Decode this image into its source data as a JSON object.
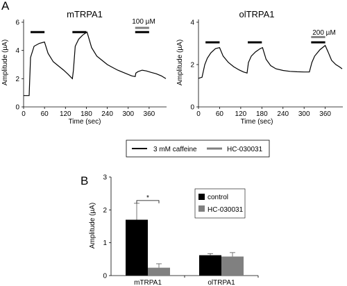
{
  "panel_labels": [
    "A",
    "B"
  ],
  "legend_top": {
    "items": [
      {
        "label": "3 mM caffeine",
        "color": "#000000"
      },
      {
        "label": "HC-030031",
        "color": "#808080"
      }
    ]
  },
  "chart_data": [
    {
      "type": "line",
      "title": "mTRPA1",
      "xlabel": "Time (sec)",
      "ylabel": "Amplitude (µA)",
      "xlim": [
        0,
        410
      ],
      "ylim": [
        0,
        6
      ],
      "xticks": [
        "0",
        "60",
        "120",
        "180",
        "240",
        "300",
        "360"
      ],
      "xtick_values": [
        0,
        60,
        120,
        180,
        240,
        300,
        360
      ],
      "yticks": [
        "0",
        "2",
        "4",
        "6"
      ],
      "ytick_values": [
        0,
        2,
        4,
        6
      ],
      "series": [
        {
          "x": [
            0,
            12,
            16,
            20,
            30,
            45,
            60,
            70,
            85,
            100,
            115,
            128,
            138,
            140,
            143,
            148,
            158,
            170,
            182,
            195,
            210,
            225,
            240,
            255,
            270,
            290,
            310,
            320,
            322,
            328,
            340,
            352,
            365,
            380,
            395,
            408
          ],
          "y": [
            0.8,
            0.8,
            0.8,
            3.5,
            4.3,
            4.5,
            4.6,
            3.8,
            3.2,
            2.9,
            2.6,
            2.3,
            2.05,
            2.0,
            2.6,
            4.3,
            4.8,
            5.1,
            5.3,
            4.2,
            3.6,
            3.3,
            3.0,
            2.8,
            2.6,
            2.4,
            2.2,
            2.15,
            2.4,
            2.5,
            2.6,
            2.55,
            2.45,
            2.35,
            2.2,
            2.0
          ]
        }
      ],
      "bars": [
        {
          "x_start": 20,
          "x_end": 60,
          "y": 5.3,
          "color": "#000000"
        },
        {
          "x_start": 140,
          "x_end": 180,
          "y": 5.3,
          "color": "#000000"
        },
        {
          "x_start": 320,
          "x_end": 360,
          "y": 5.3,
          "color": "#000000"
        },
        {
          "x_start": 320,
          "x_end": 360,
          "y": 5.6,
          "color": "#808080"
        }
      ],
      "annotation": {
        "text": "100 µM",
        "x": 340,
        "y": 5.75
      }
    },
    {
      "type": "line",
      "title": "olTRPA1",
      "xlabel": "Time (sec)",
      "ylabel": "Amplitude (µA)",
      "xlim": [
        0,
        410
      ],
      "ylim": [
        0,
        4
      ],
      "xticks": [
        "0",
        "60",
        "120",
        "180",
        "240",
        "300",
        "360"
      ],
      "xtick_values": [
        0,
        60,
        120,
        180,
        240,
        300,
        360
      ],
      "yticks": [
        "0",
        "2",
        "4"
      ],
      "ytick_values": [
        0,
        2,
        4
      ],
      "series": [
        {
          "x": [
            0,
            10,
            18,
            25,
            35,
            48,
            60,
            70,
            85,
            100,
            115,
            128,
            138,
            142,
            150,
            162,
            175,
            182,
            192,
            205,
            220,
            240,
            260,
            280,
            300,
            315,
            322,
            330,
            345,
            360,
            368,
            378,
            390,
            400,
            408
          ],
          "y": [
            1.35,
            1.4,
            2.0,
            2.3,
            2.55,
            2.75,
            2.8,
            2.4,
            2.1,
            1.9,
            1.75,
            1.65,
            1.6,
            2.1,
            2.4,
            2.6,
            2.75,
            2.8,
            2.25,
            1.95,
            1.8,
            1.72,
            1.68,
            1.66,
            1.65,
            1.65,
            2.1,
            2.4,
            2.7,
            2.9,
            2.6,
            2.2,
            2.0,
            1.9,
            1.8
          ]
        }
      ],
      "bars": [
        {
          "x_start": 20,
          "x_end": 60,
          "y": 3.05,
          "color": "#000000"
        },
        {
          "x_start": 140,
          "x_end": 180,
          "y": 3.05,
          "color": "#000000"
        },
        {
          "x_start": 320,
          "x_end": 360,
          "y": 3.05,
          "color": "#000000"
        },
        {
          "x_start": 320,
          "x_end": 360,
          "y": 3.3,
          "color": "#808080"
        }
      ],
      "annotation": {
        "text": "200 µM",
        "x": 340,
        "y": 3.45
      }
    },
    {
      "type": "bar",
      "title": "",
      "xlabel": "",
      "ylabel": "Amplitude (µA)",
      "categories": [
        "mTRPA1",
        "olTRPA1"
      ],
      "ylim": [
        0,
        3
      ],
      "yticks": [
        "0",
        "1",
        "2",
        "3"
      ],
      "ytick_values": [
        0,
        1,
        2,
        3
      ],
      "series": [
        {
          "name": "control",
          "color": "#000000",
          "values": [
            1.7,
            0.62
          ],
          "errors": [
            0.5,
            0.05
          ]
        },
        {
          "name": "HC-030031",
          "color": "#808080",
          "values": [
            0.24,
            0.58
          ],
          "errors": [
            0.12,
            0.12
          ]
        }
      ],
      "significance": {
        "text": "*",
        "between": "mTRPA1"
      },
      "legend_placement": "right"
    }
  ]
}
